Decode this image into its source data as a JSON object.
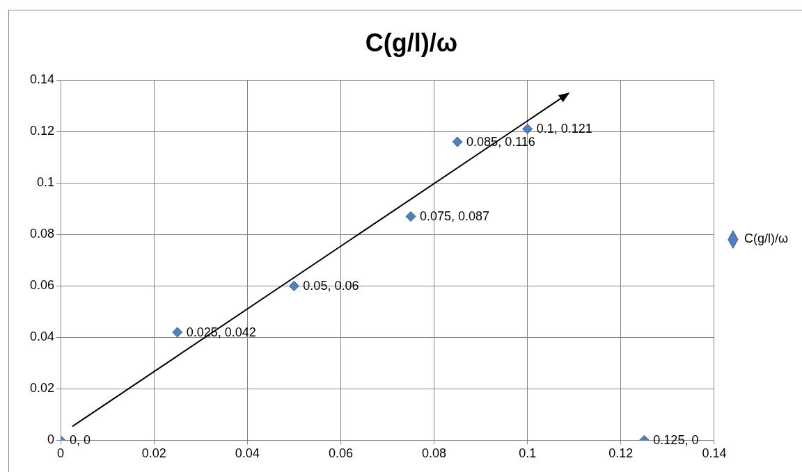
{
  "chart_data": {
    "type": "scatter",
    "title": "C(g/l)/ω",
    "series": [
      {
        "name": "C(g/l)/ω",
        "color": "#4f81bd",
        "x": [
          0,
          0.025,
          0.05,
          0.075,
          0.085,
          0.1,
          0.125
        ],
        "values": [
          0,
          0.042,
          0.06,
          0.087,
          0.116,
          0.121,
          0
        ],
        "value_labels": [
          "0, 0",
          "0.025, 0.042",
          "0.05, 0.06",
          "0.075, 0.087",
          "0.085, 0.116",
          "0.1, 0.121",
          "0.125, 0"
        ]
      }
    ],
    "xlim": [
      0,
      0.14
    ],
    "xticks": [
      0,
      0.02,
      0.04,
      0.06,
      0.08,
      0.1,
      0.12,
      0.14
    ],
    "ylim": [
      0,
      0.14
    ],
    "yticks": [
      0,
      0.02,
      0.04,
      0.06,
      0.08,
      0.1,
      0.12,
      0.14
    ],
    "grid": true,
    "legend": "right",
    "marker": "diamond"
  }
}
